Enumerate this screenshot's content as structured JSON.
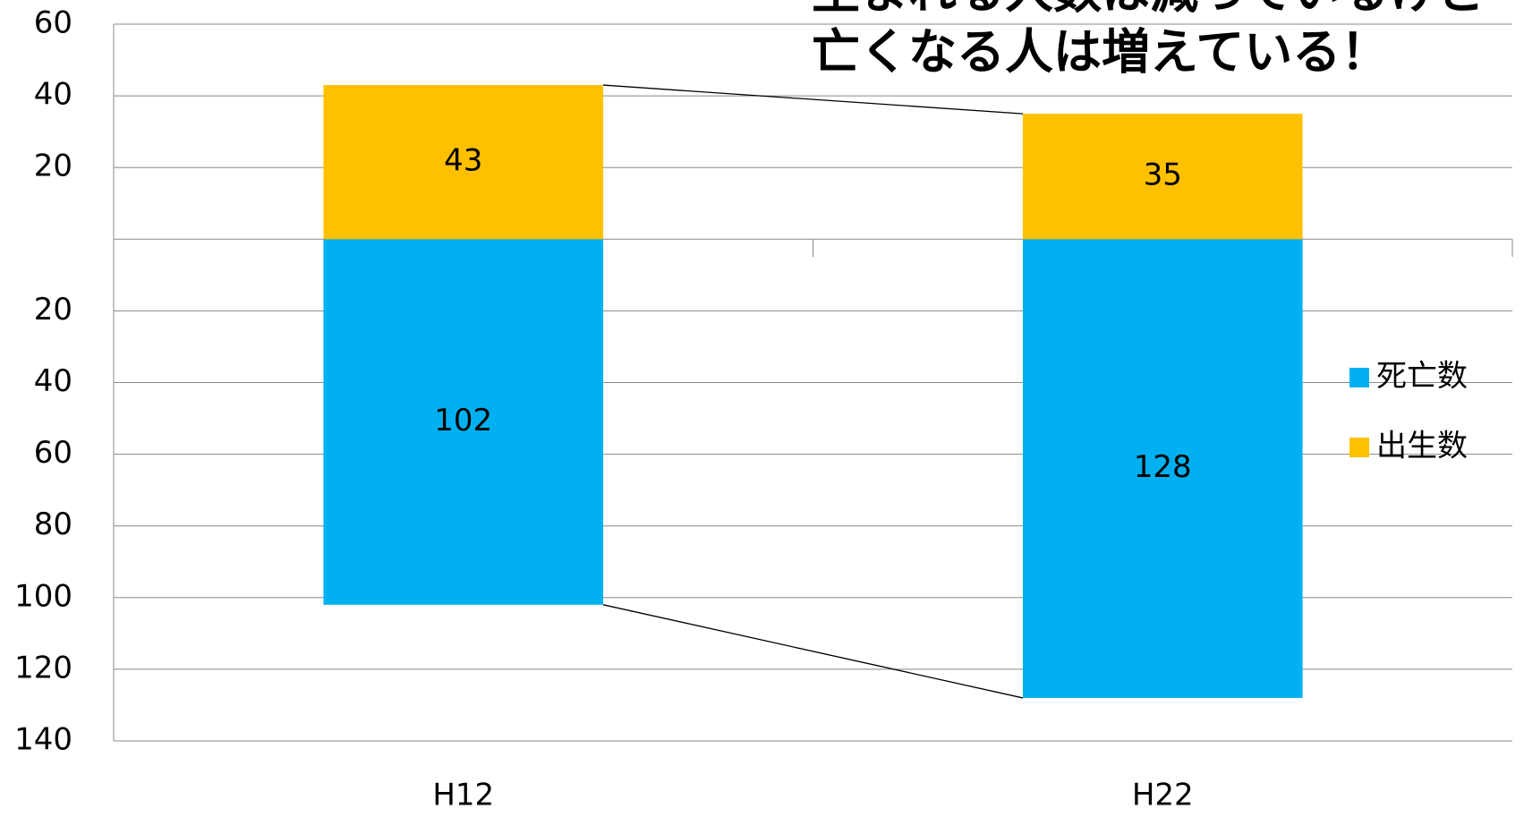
{
  "chart_data": {
    "type": "bar",
    "title_lines": [
      "生まれる人数は減っているけど",
      "亡くなる人は増えている！"
    ],
    "categories": [
      "H12",
      "H22"
    ],
    "series": [
      {
        "name": "死亡数",
        "color": "#00b0f0",
        "values": [
          -102,
          -128
        ],
        "value_labels": [
          "102",
          "128"
        ]
      },
      {
        "name": "出生数",
        "color": "#ffc000",
        "values": [
          43,
          35
        ]
      }
    ],
    "ylim": [
      -140,
      60
    ],
    "yticks": [
      {
        "value": 60,
        "label": "60"
      },
      {
        "value": 40,
        "label": "40"
      },
      {
        "value": 20,
        "label": "20"
      },
      {
        "value": -20,
        "label": "20"
      },
      {
        "value": -40,
        "label": "40"
      },
      {
        "value": -60,
        "label": "60"
      },
      {
        "value": -80,
        "label": "80"
      },
      {
        "value": -100,
        "label": "100"
      },
      {
        "value": -120,
        "label": "120"
      },
      {
        "value": -140,
        "label": "140"
      }
    ],
    "grid": true,
    "legend": "right",
    "series_lines": true
  }
}
